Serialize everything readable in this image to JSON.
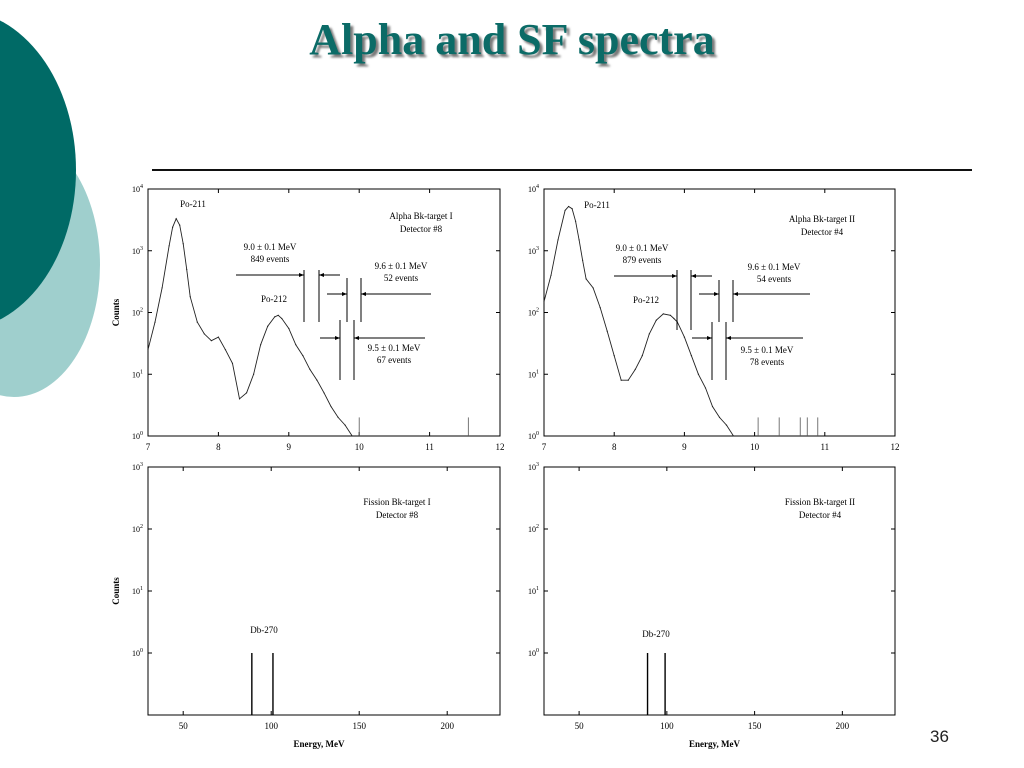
{
  "slide": {
    "title": "Alpha and SF spectra",
    "number": "36"
  },
  "colors": {
    "title": "#0b6b67",
    "deco_dark": "#006a66",
    "deco_light": "#9fcfcd",
    "line": "#000000"
  },
  "chart_data": [
    {
      "id": "alpha-1",
      "type": "line",
      "xlim": [
        7,
        12
      ],
      "yscale": "log",
      "ylim": [
        1,
        10000
      ],
      "x_ticks": [
        7,
        8,
        9,
        10,
        11,
        12
      ],
      "y_ticks": [
        "10^0",
        "10^1",
        "10^2",
        "10^3",
        "10^4"
      ],
      "ylabel": "Counts",
      "xlabel": "",
      "label_lines": [
        "Alpha Bk-target I",
        "Detector #8"
      ],
      "series": [
        {
          "x": [
            7.0,
            7.1,
            7.2,
            7.3,
            7.35,
            7.4,
            7.45,
            7.5,
            7.55,
            7.6,
            7.7,
            7.8,
            7.9,
            8.0,
            8.1,
            8.2,
            8.3,
            8.4,
            8.5,
            8.6,
            8.7,
            8.8,
            8.85,
            8.9,
            9.0,
            9.1,
            9.2,
            9.3,
            9.4,
            9.5,
            9.6,
            9.7,
            9.8,
            9.9
          ],
          "y": [
            25,
            70,
            250,
            1200,
            2400,
            3300,
            2600,
            1300,
            500,
            180,
            70,
            45,
            35,
            40,
            25,
            15,
            4,
            5,
            10,
            30,
            60,
            85,
            90,
            80,
            55,
            30,
            20,
            12,
            8,
            5,
            3,
            2,
            1.5,
            1
          ]
        }
      ],
      "peaks": [
        {
          "label": "Po-211",
          "x": 7.4
        },
        {
          "label": "Po-212",
          "x": 8.8
        }
      ],
      "annotations": [
        {
          "lines": [
            "9.0 ± 0.1 MeV",
            "849 events"
          ],
          "gate": [
            8.9,
            9.1
          ]
        },
        {
          "lines": [
            "9.6 ± 0.1 MeV",
            "52 events"
          ],
          "gate": [
            9.5,
            9.7
          ]
        },
        {
          "lines": [
            "9.5 ± 0.1 MeV",
            "67 events"
          ],
          "gate": [
            9.4,
            9.6
          ]
        }
      ]
    },
    {
      "id": "alpha-2",
      "type": "line",
      "xlim": [
        7,
        12
      ],
      "yscale": "log",
      "ylim": [
        1,
        10000
      ],
      "x_ticks": [
        7,
        8,
        9,
        10,
        11,
        12
      ],
      "y_ticks": [
        "10^0",
        "10^1",
        "10^2",
        "10^3",
        "10^4"
      ],
      "ylabel": "",
      "xlabel": "",
      "label_lines": [
        "Alpha Bk-target II",
        "Detector #4"
      ],
      "series": [
        {
          "x": [
            7.0,
            7.1,
            7.2,
            7.3,
            7.35,
            7.4,
            7.45,
            7.5,
            7.55,
            7.6,
            7.7,
            7.8,
            7.9,
            8.0,
            8.1,
            8.2,
            8.3,
            8.4,
            8.5,
            8.6,
            8.7,
            8.8,
            8.85,
            8.9,
            9.0,
            9.1,
            9.2,
            9.3,
            9.4,
            9.5,
            9.6,
            9.7
          ],
          "y": [
            150,
            400,
            1500,
            4500,
            5200,
            4800,
            3000,
            1500,
            700,
            350,
            250,
            120,
            50,
            20,
            8,
            8,
            12,
            20,
            45,
            75,
            95,
            90,
            80,
            70,
            40,
            20,
            10,
            6,
            3,
            2,
            1.5,
            1
          ]
        }
      ],
      "peaks": [
        {
          "label": "Po-211",
          "x": 7.4
        },
        {
          "label": "Po-212",
          "x": 8.7
        }
      ],
      "annotations": [
        {
          "lines": [
            "9.0 ± 0.1 MeV",
            "879 events"
          ],
          "gate": [
            8.9,
            9.1
          ]
        },
        {
          "lines": [
            "9.6 ± 0.1 MeV",
            "54 events"
          ],
          "gate": [
            9.5,
            9.7
          ]
        },
        {
          "lines": [
            "9.5 ± 0.1 MeV",
            "78 events"
          ],
          "gate": [
            9.4,
            9.6
          ]
        }
      ]
    },
    {
      "id": "fission-1",
      "type": "bar",
      "xlim": [
        30,
        230
      ],
      "yscale": "log",
      "ylim": [
        0.1,
        1000
      ],
      "x_ticks": [
        50,
        100,
        150,
        200
      ],
      "y_ticks": [
        "10^0",
        "10^1",
        "10^2",
        "10^3"
      ],
      "ylabel": "Counts",
      "xlabel": "Energy, MeV",
      "label_lines": [
        "Fission Bk-target I",
        "Detector #8"
      ],
      "events": [
        {
          "x": 89,
          "count": 1
        },
        {
          "x": 101,
          "count": 1
        }
      ],
      "event_label": "Db-270"
    },
    {
      "id": "fission-2",
      "type": "bar",
      "xlim": [
        30,
        230
      ],
      "yscale": "log",
      "ylim": [
        0.1,
        1000
      ],
      "x_ticks": [
        50,
        100,
        150,
        200
      ],
      "y_ticks": [
        "10^0",
        "10^1",
        "10^2",
        "10^3"
      ],
      "ylabel": "",
      "xlabel": "Energy, MeV",
      "label_lines": [
        "Fission Bk-target II",
        "Detector #4"
      ],
      "events": [
        {
          "x": 89,
          "count": 1
        },
        {
          "x": 99,
          "count": 1
        }
      ],
      "event_label": "Db-270"
    }
  ]
}
